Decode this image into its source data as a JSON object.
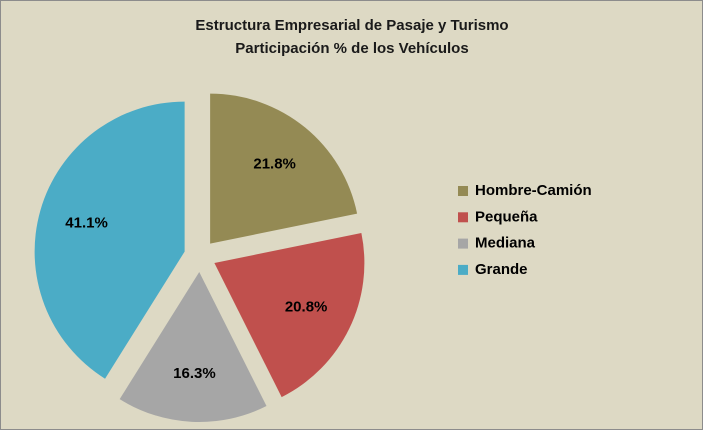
{
  "chart_data": {
    "type": "pie",
    "title": "Estructura Empresarial de Pasaje y Turismo",
    "subtitle": "Participación % de los Vehículos",
    "categories": [
      "Hombre-Camión",
      "Pequeña",
      "Mediana",
      "Grande"
    ],
    "values": [
      21.8,
      20.8,
      16.3,
      41.1
    ],
    "value_labels": [
      "21.8%",
      "20.8%",
      "16.3%",
      "41.1%"
    ],
    "colors": [
      "#948a54",
      "#c0504d",
      "#a6a6a6",
      "#4bacc6"
    ],
    "legend": "right"
  }
}
